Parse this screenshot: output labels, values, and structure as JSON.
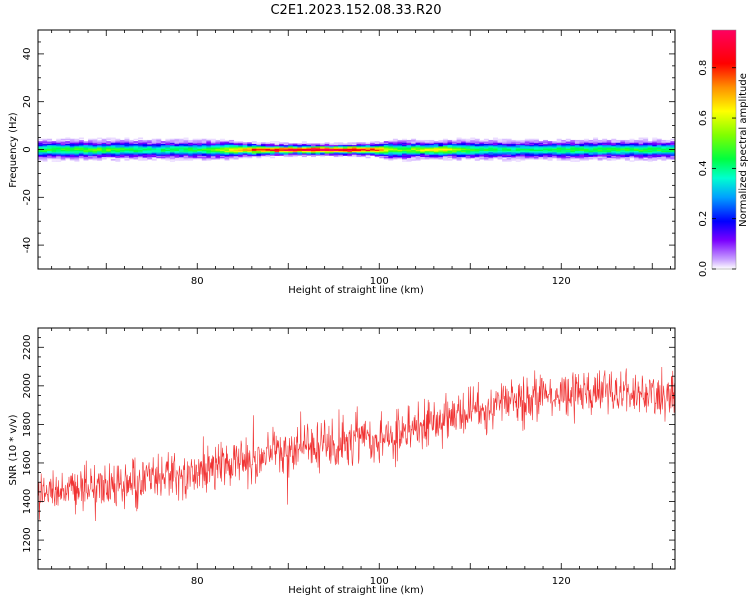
{
  "figure_title": "C2E1.2023.152.08.33.R20",
  "chart_data": [
    {
      "type": "heatmap",
      "title": "",
      "xlabel": "Height of straight line (km)",
      "ylabel": "Frequency (Hz)",
      "xlim": [
        62.5,
        132.5
      ],
      "ylim": [
        -50,
        50
      ],
      "xticks": [
        80,
        100,
        120
      ],
      "yticks": [
        -40,
        -20,
        0,
        20,
        40
      ],
      "colorbar": {
        "label": "Normalized spectral amplitude",
        "range": [
          0,
          0.95
        ],
        "ticks": [
          0.0,
          0.2,
          0.4,
          0.6,
          0.8
        ]
      },
      "band_center_hz": 0,
      "band_profile": {
        "x": [
          62.5,
          70,
          75,
          80,
          82,
          84,
          86,
          88,
          90,
          92,
          94,
          96,
          98,
          100,
          101,
          103,
          105,
          107,
          109,
          111,
          115,
          120,
          125,
          132.5
        ],
        "peak_amplitude": [
          0.45,
          0.5,
          0.4,
          0.45,
          0.5,
          0.65,
          0.75,
          0.85,
          0.9,
          0.92,
          0.92,
          0.9,
          0.85,
          0.75,
          0.55,
          0.5,
          0.6,
          0.65,
          0.5,
          0.45,
          0.4,
          0.45,
          0.45,
          0.45
        ],
        "half_width_hz": [
          2.5,
          2.5,
          2.5,
          2.5,
          2.5,
          2.2,
          1.8,
          1.6,
          1.5,
          1.5,
          1.5,
          1.5,
          1.6,
          1.8,
          2.5,
          2.5,
          2.2,
          2.2,
          2.5,
          2.5,
          2.5,
          2.5,
          2.5,
          2.5
        ]
      }
    },
    {
      "type": "line",
      "title": "",
      "xlabel": "Height of straight line (km)",
      "ylabel": "SNR (10 * v/v)",
      "xlim": [
        62.5,
        132.5
      ],
      "ylim": [
        1050,
        2300
      ],
      "xticks": [
        80,
        100,
        120
      ],
      "yticks": [
        1200,
        1400,
        1600,
        1800,
        2000,
        2200
      ],
      "series_color": "#f03232",
      "trend": {
        "x": [
          62.5,
          70,
          80,
          90,
          100,
          110,
          120,
          132.5
        ],
        "y": [
          1430,
          1480,
          1550,
          1670,
          1720,
          1870,
          1960,
          1960
        ]
      },
      "noise_amplitude": 90,
      "sample_count": 1400
    }
  ]
}
